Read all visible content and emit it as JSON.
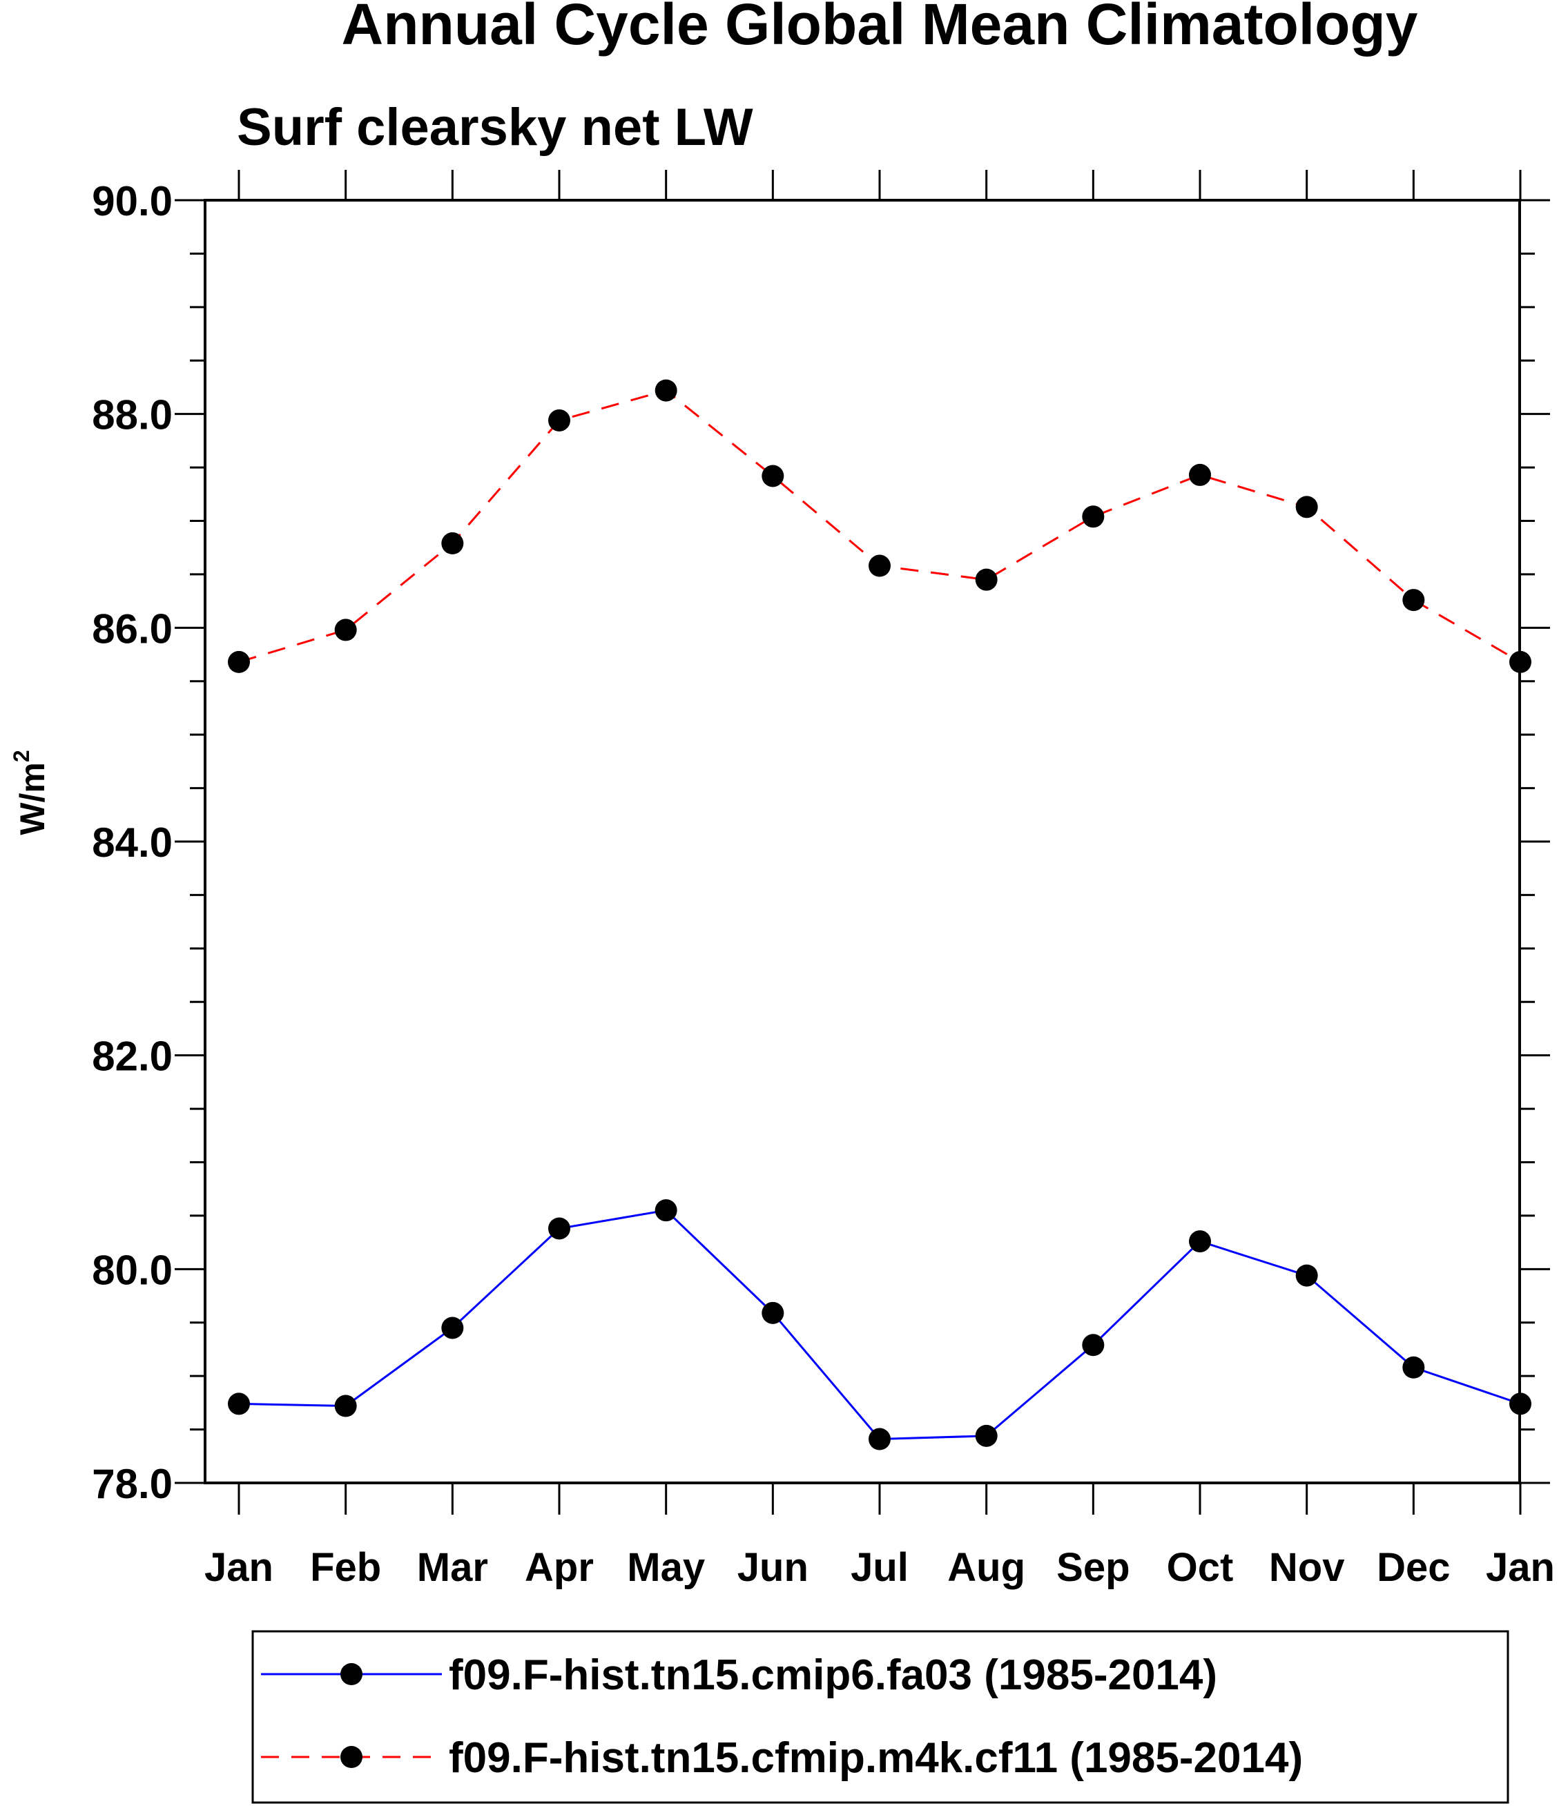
{
  "chart_data": {
    "type": "line",
    "title": "Annual Cycle Global Mean Climatology",
    "subtitle": "Surf clearsky net LW",
    "xlabel": "",
    "ylabel_base": "W/m",
    "ylabel_sup": "2",
    "categories": [
      "Jan",
      "Feb",
      "Mar",
      "Apr",
      "May",
      "Jun",
      "Jul",
      "Aug",
      "Sep",
      "Oct",
      "Nov",
      "Dec",
      "Jan"
    ],
    "ylim": [
      78.0,
      90.0
    ],
    "yticks": [
      "78.0",
      "80.0",
      "82.0",
      "84.0",
      "86.0",
      "88.0",
      "90.0"
    ],
    "grid": false,
    "legend_position": "bottom",
    "series": [
      {
        "name": "f09.F-hist.tn15.cmip6.fa03 (1985-2014)",
        "color": "#0000ff",
        "line_style": "solid",
        "marker": "filled-circle",
        "values": [
          78.74,
          78.72,
          79.45,
          80.38,
          80.55,
          79.59,
          78.41,
          78.44,
          79.29,
          80.26,
          79.94,
          79.08,
          78.74
        ]
      },
      {
        "name": "f09.F-hist.tn15.cfmip.m4k.cf11 (1985-2014)",
        "color": "#ff0000",
        "line_style": "dashed",
        "marker": "filled-circle",
        "values": [
          85.68,
          85.98,
          86.79,
          87.94,
          88.22,
          87.42,
          86.58,
          86.45,
          87.04,
          87.43,
          87.13,
          86.26,
          85.68
        ]
      }
    ]
  }
}
